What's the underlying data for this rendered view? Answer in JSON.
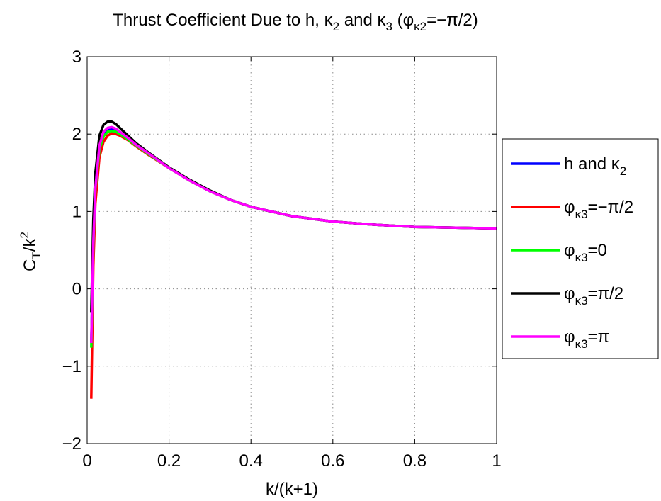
{
  "chart_data": {
    "type": "line",
    "title": {
      "main": "Thrust Coefficient Due to h, κ",
      "sub1": "2",
      "mid": " and κ",
      "sub2": "3",
      "open": " (φ",
      "sub3": "κ2",
      "close": "=−π/2)"
    },
    "xlabel": "k/(k+1)",
    "ylabel": {
      "main": "C",
      "sub": "T",
      "rest": "/k",
      "sup": "2"
    },
    "xlim": [
      0,
      1
    ],
    "ylim": [
      -2,
      3
    ],
    "xticks": [
      0,
      0.2,
      0.4,
      0.6,
      0.8,
      1
    ],
    "xtick_labels": [
      "0",
      "0.2",
      "0.4",
      "0.6",
      "0.8",
      "1"
    ],
    "yticks": [
      -2,
      -1,
      0,
      1,
      2,
      3
    ],
    "ytick_labels": [
      "−2",
      "−1",
      "0",
      "1",
      "2",
      "3"
    ],
    "grid": true,
    "legend_position": "outside-right",
    "series": [
      {
        "legend": {
          "main": "h and κ",
          "sub": "2",
          "rest": ""
        },
        "color": "#0000ff",
        "x": [
          0.01,
          0.015,
          0.02,
          0.03,
          0.04,
          0.05,
          0.06,
          0.07,
          0.08,
          0.1,
          0.12,
          0.15,
          0.2,
          0.25,
          0.3,
          0.35,
          0.4,
          0.5,
          0.6,
          0.7,
          0.8,
          0.9,
          1.0
        ],
        "y": [
          -0.7,
          0.6,
          1.3,
          1.8,
          1.98,
          2.05,
          2.06,
          2.05,
          2.01,
          1.93,
          1.85,
          1.74,
          1.56,
          1.4,
          1.26,
          1.15,
          1.06,
          0.94,
          0.87,
          0.83,
          0.8,
          0.79,
          0.78
        ]
      },
      {
        "legend": {
          "main": "φ",
          "sub": "κ3",
          "rest": "=−π/2"
        },
        "color": "#ff0000",
        "x": [
          0.01,
          0.015,
          0.02,
          0.03,
          0.04,
          0.05,
          0.06,
          0.07,
          0.08,
          0.1,
          0.12,
          0.15,
          0.2,
          0.25,
          0.3,
          0.35,
          0.4,
          0.5,
          0.6,
          0.7,
          0.8,
          0.9,
          1.0
        ],
        "y": [
          -1.42,
          0.3,
          1.1,
          1.7,
          1.9,
          1.98,
          2.01,
          2.0,
          1.98,
          1.92,
          1.84,
          1.73,
          1.56,
          1.4,
          1.26,
          1.15,
          1.06,
          0.94,
          0.87,
          0.83,
          0.8,
          0.79,
          0.78
        ]
      },
      {
        "legend": {
          "main": "φ",
          "sub": "κ3",
          "rest": "=0"
        },
        "color": "#00ff00",
        "x": [
          0.01,
          0.015,
          0.02,
          0.03,
          0.04,
          0.05,
          0.06,
          0.07,
          0.08,
          0.1,
          0.12,
          0.15,
          0.2,
          0.25,
          0.3,
          0.35,
          0.4,
          0.5,
          0.6,
          0.7,
          0.8,
          0.9,
          1.0
        ],
        "y": [
          -0.76,
          0.55,
          1.28,
          1.8,
          1.97,
          2.03,
          2.04,
          2.03,
          2.0,
          1.93,
          1.85,
          1.74,
          1.56,
          1.4,
          1.26,
          1.15,
          1.06,
          0.94,
          0.87,
          0.83,
          0.8,
          0.79,
          0.78
        ]
      },
      {
        "legend": {
          "main": "φ",
          "sub": "κ3",
          "rest": "=π/2"
        },
        "color": "#000000",
        "x": [
          0.01,
          0.015,
          0.02,
          0.03,
          0.04,
          0.05,
          0.06,
          0.07,
          0.08,
          0.1,
          0.12,
          0.15,
          0.2,
          0.25,
          0.3,
          0.35,
          0.4,
          0.5,
          0.6,
          0.7,
          0.8,
          0.9,
          1.0
        ],
        "y": [
          -0.3,
          0.9,
          1.5,
          1.98,
          2.12,
          2.16,
          2.16,
          2.13,
          2.08,
          1.98,
          1.88,
          1.76,
          1.57,
          1.41,
          1.27,
          1.15,
          1.06,
          0.94,
          0.87,
          0.83,
          0.8,
          0.79,
          0.78
        ]
      },
      {
        "legend": {
          "main": "φ",
          "sub": "κ3",
          "rest": "=π"
        },
        "color": "#ff00ff",
        "x": [
          0.01,
          0.015,
          0.02,
          0.03,
          0.04,
          0.05,
          0.06,
          0.07,
          0.08,
          0.1,
          0.12,
          0.15,
          0.2,
          0.25,
          0.3,
          0.35,
          0.4,
          0.5,
          0.6,
          0.7,
          0.8,
          0.9,
          1.0
        ],
        "y": [
          -0.7,
          0.6,
          1.3,
          1.85,
          2.03,
          2.08,
          2.09,
          2.07,
          2.03,
          1.95,
          1.86,
          1.75,
          1.56,
          1.4,
          1.26,
          1.15,
          1.06,
          0.94,
          0.87,
          0.83,
          0.8,
          0.79,
          0.78
        ]
      }
    ]
  }
}
